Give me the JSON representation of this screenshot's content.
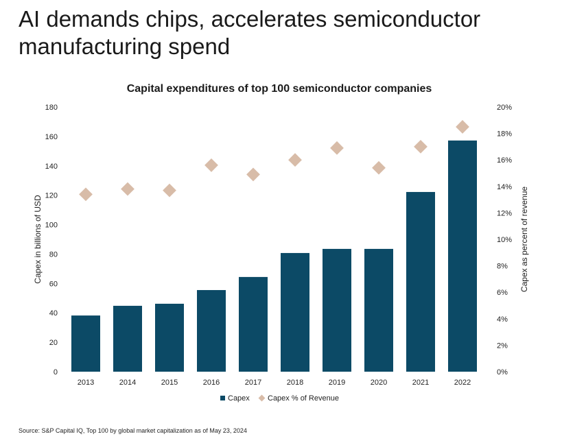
{
  "headline": "AI demands chips, accelerates semiconductor manufacturing spend",
  "source": "Source: S&P Capital IQ, Top 100 by global market capitalization as of May 23, 2024",
  "chart_data": {
    "type": "bar",
    "title": "Capital expenditures of top 100 semiconductor companies",
    "categories": [
      "2013",
      "2014",
      "2015",
      "2016",
      "2017",
      "2018",
      "2019",
      "2020",
      "2021",
      "2022"
    ],
    "series": [
      {
        "name": "Capex",
        "type": "bar",
        "axis": "left",
        "color": "#0c4a66",
        "values": [
          38.2,
          44.8,
          46.2,
          55.5,
          64.4,
          80.7,
          83.5,
          83.5,
          122.2,
          157.2
        ]
      },
      {
        "name": "Capex % of Revenue",
        "type": "scatter",
        "marker": "diamond",
        "axis": "right",
        "color": "#d8bca8",
        "values": [
          13.4,
          13.8,
          13.7,
          15.6,
          14.9,
          16.0,
          16.9,
          15.4,
          17.0,
          18.5
        ]
      }
    ],
    "ylabel": "Capex in billions of USD",
    "ylim": [
      0,
      180
    ],
    "yticks": [
      "0",
      "20",
      "40",
      "60",
      "80",
      "100",
      "120",
      "140",
      "160",
      "180"
    ],
    "y2label": "Capex as percent of revenue",
    "y2lim": [
      0,
      20
    ],
    "y2ticks": [
      "0%",
      "2%",
      "4%",
      "6%",
      "8%",
      "10%",
      "12%",
      "14%",
      "16%",
      "18%",
      "20%"
    ],
    "grid": false,
    "legend": "bottom"
  }
}
